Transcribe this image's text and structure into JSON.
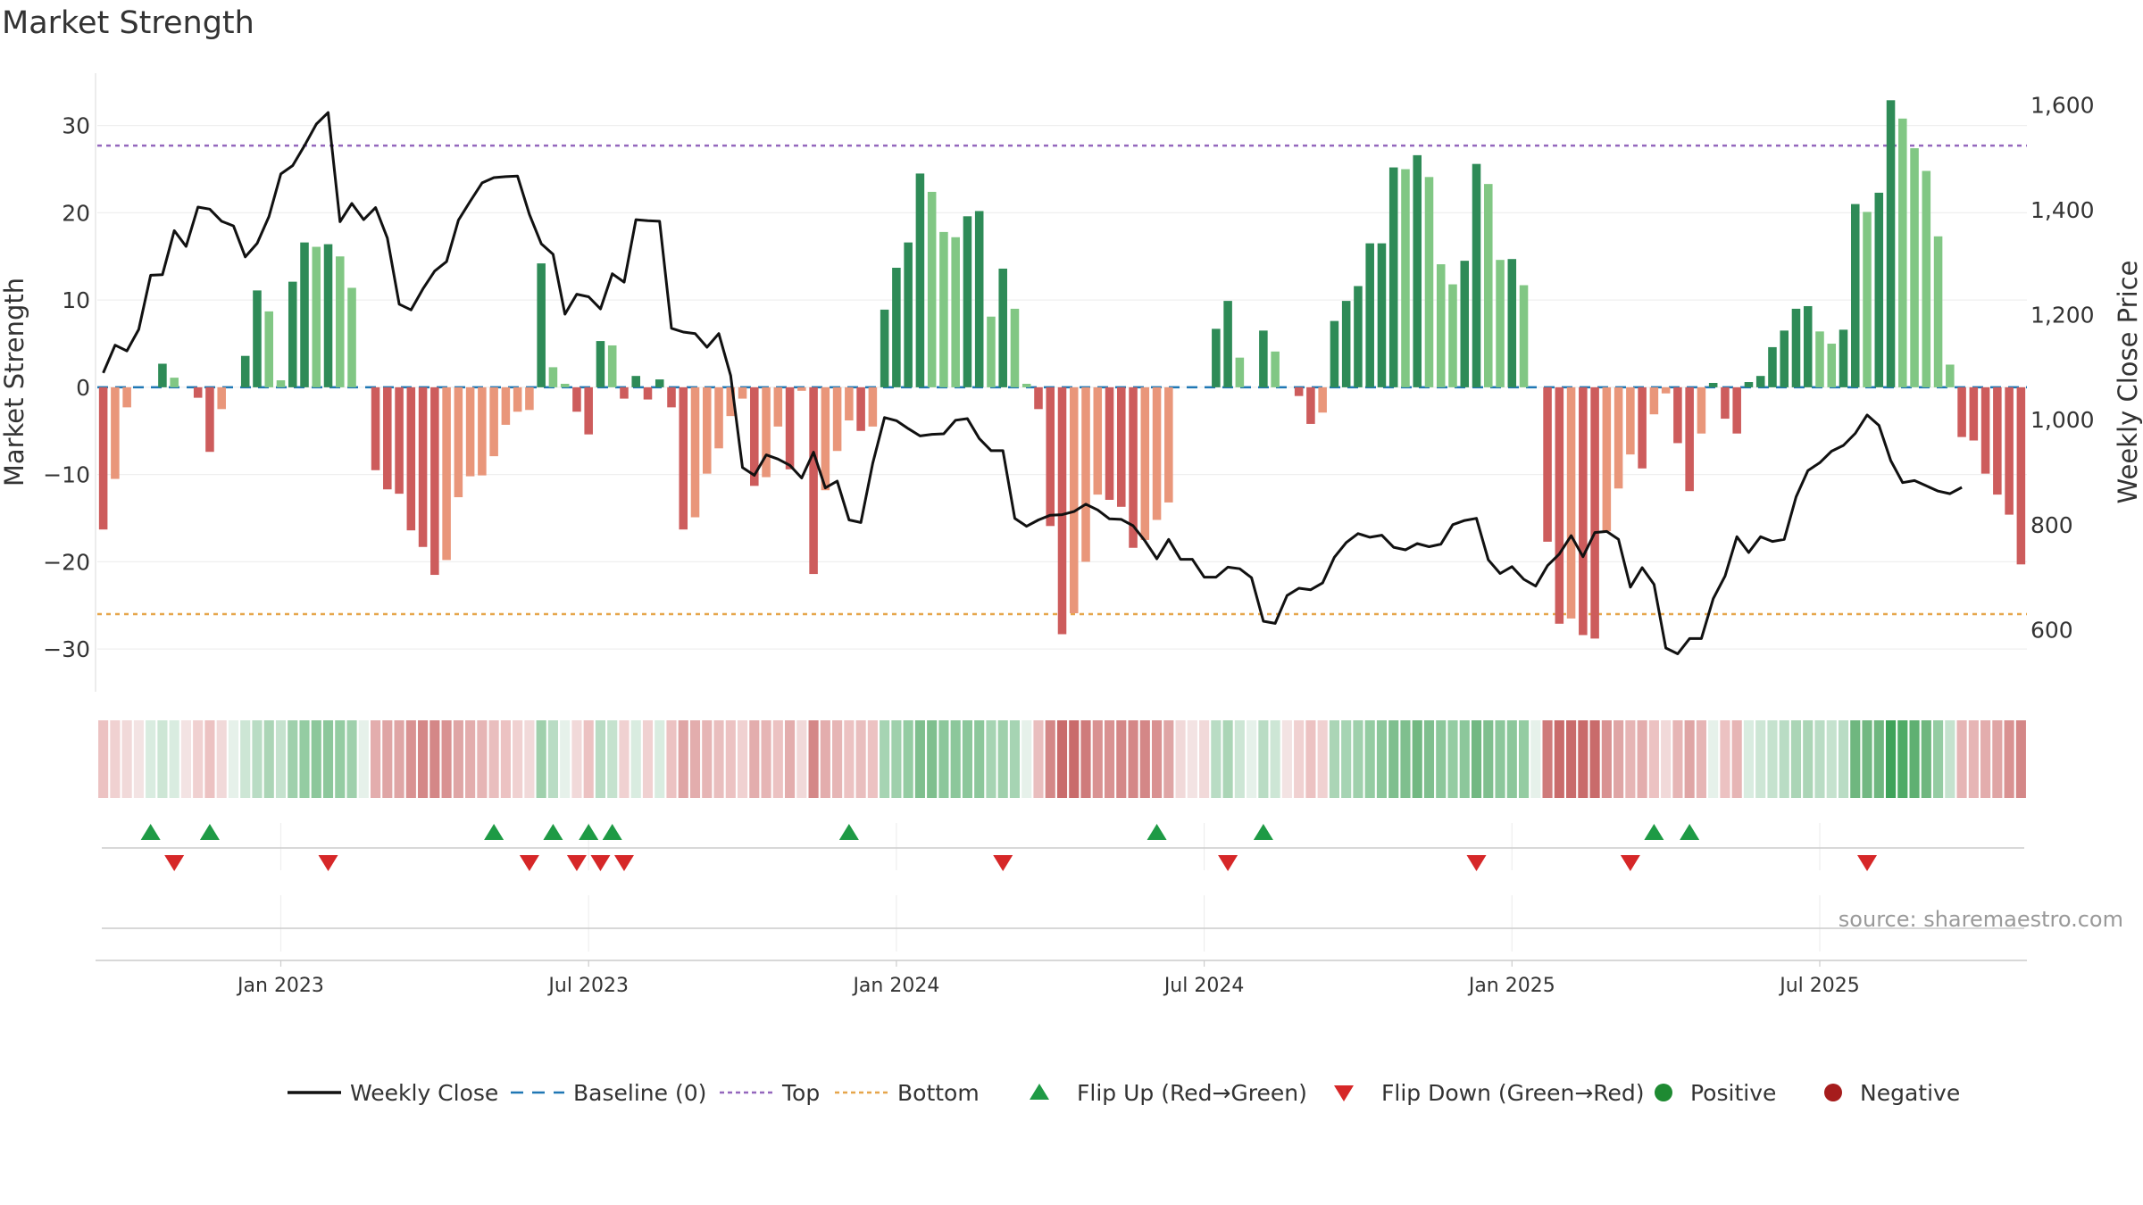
{
  "page_title": "Market Strength",
  "source_note": "source: sharemaestro.com",
  "colors": {
    "pos_strong": "#2e8b57",
    "pos_weak": "#81c784",
    "neg_strong": "#cd5c5c",
    "neg_weak": "#e9967a",
    "close_line": "#111111",
    "baseline": "#1f77b4",
    "top_line": "#9467bd",
    "bottom_line": "#e6a64b",
    "flip_up": "#1e9a45",
    "flip_down": "#d62728",
    "legend_positive": "#1e8a32",
    "legend_negative": "#a61c1c"
  },
  "chart_data": {
    "type": "bar",
    "title": "Market Strength",
    "ylabel": "Market Strength",
    "y2label": "Weekly Close Price",
    "ylim": [
      -35,
      36
    ],
    "y2lim": [
      480,
      1660
    ],
    "yticks": [
      30,
      20,
      10,
      0,
      -10,
      -20,
      -30
    ],
    "ytick_labels": [
      "30",
      "20",
      "10",
      "0",
      "−10",
      "−20",
      "−30"
    ],
    "y2ticks": [
      1600,
      1400,
      1200,
      1000,
      800,
      600
    ],
    "y2tick_labels": [
      "1,600",
      "1,400",
      "1,200",
      "1,000",
      "800",
      "600"
    ],
    "xticks": [
      {
        "week": 15,
        "label": "Jan 2023"
      },
      {
        "week": 41,
        "label": "Jul 2023"
      },
      {
        "week": 67,
        "label": "Jan 2024"
      },
      {
        "week": 93,
        "label": "Jul 2024"
      },
      {
        "week": 119,
        "label": "Jan 2025"
      },
      {
        "week": 145,
        "label": "Jul 2025"
      }
    ],
    "top_level": 27.7,
    "bottom_level": -26,
    "baseline": 0,
    "strength": [
      -16.3,
      -10.5,
      -2.3,
      0,
      0,
      2.7,
      1.1,
      0,
      -1.2,
      -7.4,
      -2.5,
      0,
      3.6,
      11.1,
      8.7,
      0.8,
      12.1,
      16.6,
      16.1,
      16.4,
      15,
      11.4,
      0,
      -9.5,
      -11.7,
      -12.2,
      -16.4,
      -18.3,
      -21.5,
      -19.8,
      -12.6,
      -10.2,
      -10.1,
      -7.9,
      -4.3,
      -2.8,
      -2.6,
      14.2,
      2.3,
      0.4,
      -2.8,
      -5.4,
      5.3,
      4.8,
      -1.3,
      1.3,
      -1.4,
      0.9,
      -2.3,
      -16.3,
      -14.9,
      -9.9,
      -7,
      -3.3,
      -1.3,
      -11.3,
      -10.3,
      -4.5,
      -9.4,
      -0.4,
      -21.4,
      -11.8,
      -7.3,
      -3.8,
      -5,
      -4.5,
      8.9,
      13.7,
      16.6,
      24.5,
      22.4,
      17.8,
      17.2,
      19.6,
      20.2,
      8.1,
      13.6,
      9,
      0.4,
      -2.5,
      -15.9,
      -28.3,
      -25.9,
      -20,
      -12.3,
      -12.9,
      -13.7,
      -18.4,
      -17.5,
      -15.2,
      -13.2,
      0,
      0,
      0,
      6.7,
      9.9,
      3.4,
      0,
      6.5,
      4.1,
      0,
      -1,
      -4.2,
      -2.9,
      7.6,
      9.9,
      11.6,
      16.5,
      16.5,
      25.2,
      25,
      26.6,
      24.1,
      14.1,
      11.8,
      14.5,
      25.6,
      23.3,
      14.6,
      14.7,
      11.7,
      0,
      -17.7,
      -27.1,
      -26.5,
      -28.4,
      -28.8,
      -16.5,
      -11.6,
      -7.7,
      -9.3,
      -3.1,
      -0.7,
      -6.4,
      -11.9,
      -5.3,
      0.5,
      -3.6,
      -5.3,
      0.6,
      1.3,
      4.6,
      6.5,
      9,
      9.3,
      6.4,
      5,
      6.6,
      21,
      20.1,
      22.3,
      32.9,
      30.8,
      27.4,
      24.8,
      17.3,
      2.6,
      -5.7,
      -6.1,
      -9.9,
      -12.3,
      -14.6,
      -20.3
    ],
    "weekly_close": [
      1089,
      1142,
      1131,
      1172,
      1275,
      1276,
      1360,
      1330,
      1405,
      1401,
      1378,
      1369,
      1310,
      1336,
      1387,
      1468,
      1484,
      1522,
      1563,
      1585,
      1377,
      1412,
      1381,
      1404,
      1346,
      1220,
      1209,
      1249,
      1283,
      1301,
      1380,
      1416,
      1451,
      1461,
      1463,
      1464,
      1391,
      1335,
      1315,
      1201,
      1239,
      1234,
      1211,
      1278,
      1262,
      1381,
      1379,
      1378,
      1174,
      1167,
      1164,
      1138,
      1164,
      1084,
      909,
      894,
      933,
      925,
      913,
      889,
      938,
      870,
      883,
      809,
      804,
      917,
      1004,
      998,
      983,
      969,
      972,
      973,
      999,
      1002,
      964,
      941,
      941,
      812,
      797,
      809,
      818,
      819,
      825,
      839,
      828,
      811,
      810,
      798,
      769,
      735,
      772,
      734,
      734,
      700,
      700,
      719,
      716,
      699,
      616,
      612,
      665,
      679,
      676,
      689,
      738,
      766,
      783,
      776,
      780,
      757,
      752,
      764,
      758,
      763,
      800,
      808,
      812,
      733,
      707,
      720,
      696,
      683,
      722,
      744,
      779,
      739,
      785,
      787,
      772,
      681,
      718,
      686,
      565,
      554,
      583,
      583,
      659,
      702,
      777,
      747,
      777,
      768,
      772,
      853,
      903,
      918,
      940,
      951,
      974,
      1009,
      989,
      922,
      880,
      884,
      874,
      864,
      859,
      871
    ],
    "regime_colors": [
      "#ecc2c2",
      "#f0d1d1",
      "#f1d9d9",
      "#f3e3e3",
      "#d9ece0",
      "#cde6d5",
      "#d9ece0",
      "#f3e3e3",
      "#f0d1d1",
      "#ecc2c2",
      "#f1d9d9",
      "#e6f1ea",
      "#cde6d5",
      "#b9dcc4",
      "#abd5b6",
      "#c5e2ce",
      "#9fd0ac",
      "#94cca2",
      "#8cc79b",
      "#8cc79b",
      "#94cca2",
      "#9fd0ac",
      "#e6f1ea",
      "#e3adad",
      "#dfa5a5",
      "#dfa5a5",
      "#d99292",
      "#d48787",
      "#d48787",
      "#d99292",
      "#dfa5a5",
      "#e3adad",
      "#e6b5b5",
      "#e9bebe",
      "#ecc2c2",
      "#f0d1d1",
      "#f1d9d9",
      "#9fd0ac",
      "#b9dcc4",
      "#e6f1ea",
      "#f1d9d9",
      "#ecc2c2",
      "#b9dcc4",
      "#c5e2ce",
      "#f0d1d1",
      "#d9ece0",
      "#f0d1d1",
      "#d9ece0",
      "#ecc2c2",
      "#dfa5a5",
      "#e3adad",
      "#e6b5b5",
      "#e9bebe",
      "#ecc2c2",
      "#f0d1d1",
      "#e3adad",
      "#e6b5b5",
      "#ecc2c2",
      "#e3adad",
      "#f1d9d9",
      "#d48787",
      "#e3adad",
      "#e6b5b5",
      "#ecc2c2",
      "#e9bebe",
      "#ecc2c2",
      "#a6d4b3",
      "#9fd0ac",
      "#94cca2",
      "#7fbf8e",
      "#7fbf8e",
      "#8cc79b",
      "#8cc79b",
      "#8cc79b",
      "#8cc79b",
      "#a6d4b3",
      "#9fd0ac",
      "#a6d4b3",
      "#e6f1ea",
      "#e9bebe",
      "#d48787",
      "#c96b6b",
      "#c96b6b",
      "#cf7b7b",
      "#d99292",
      "#d99292",
      "#d48787",
      "#d48787",
      "#d48787",
      "#d99292",
      "#dfa5a5",
      "#f1d9d9",
      "#f3e3e3",
      "#f1d9d9",
      "#b9dcc4",
      "#abd5b6",
      "#cde6d5",
      "#e6f1ea",
      "#b9dcc4",
      "#cde6d5",
      "#f3e3e3",
      "#f0d1d1",
      "#ecc2c2",
      "#f0d1d1",
      "#abd5b6",
      "#a6d4b3",
      "#9fd0ac",
      "#94cca2",
      "#8cc79b",
      "#7fbf8e",
      "#7fbf8e",
      "#72b882",
      "#7fbf8e",
      "#8cc79b",
      "#94cca2",
      "#8cc79b",
      "#72b882",
      "#7fbf8e",
      "#8cc79b",
      "#8cc79b",
      "#94cca2",
      "#e6f1ea",
      "#cf7b7b",
      "#c96b6b",
      "#c96b6b",
      "#c96b6b",
      "#c96b6b",
      "#d99292",
      "#dfa5a5",
      "#e6b5b5",
      "#e3adad",
      "#ecc2c2",
      "#f1d9d9",
      "#e6b5b5",
      "#dfa5a5",
      "#e6b5b5",
      "#e6f1ea",
      "#ecc2c2",
      "#e6b5b5",
      "#d9ece0",
      "#cde6d5",
      "#c5e2ce",
      "#b9dcc4",
      "#abd5b6",
      "#abd5b6",
      "#b9dcc4",
      "#c5e2ce",
      "#b9dcc4",
      "#6fb77f",
      "#72b882",
      "#6fb77f",
      "#3fa35a",
      "#4fab67",
      "#5fb072",
      "#6fb77f",
      "#94cca2",
      "#c5e2ce",
      "#e6b5b5",
      "#e6b5b5",
      "#e3adad",
      "#dfa5a5",
      "#d99292",
      "#d48787"
    ],
    "flip_up_weeks": [
      4,
      9,
      33,
      38,
      41,
      43,
      63,
      89,
      98,
      131,
      134
    ],
    "flip_down_weeks": [
      6,
      19,
      36,
      40,
      42,
      44,
      76,
      95,
      116,
      129,
      149
    ],
    "legend": [
      {
        "key": "close",
        "label": "Weekly Close",
        "color": "#111111"
      },
      {
        "key": "baseline",
        "label": "Baseline (0)",
        "color": "#1f77b4"
      },
      {
        "key": "top",
        "label": "Top",
        "color": "#9467bd"
      },
      {
        "key": "bottom",
        "label": "Bottom",
        "color": "#e6a64b"
      },
      {
        "key": "flip-up",
        "label": "Flip Up (Red→Green)",
        "color": "#1e9a45"
      },
      {
        "key": "flip-down",
        "label": "Flip Down (Green→Red)",
        "color": "#d62728"
      },
      {
        "key": "positive",
        "label": "Positive",
        "color": "#1e8a32"
      },
      {
        "key": "negative",
        "label": "Negative",
        "color": "#a61c1c"
      }
    ]
  }
}
